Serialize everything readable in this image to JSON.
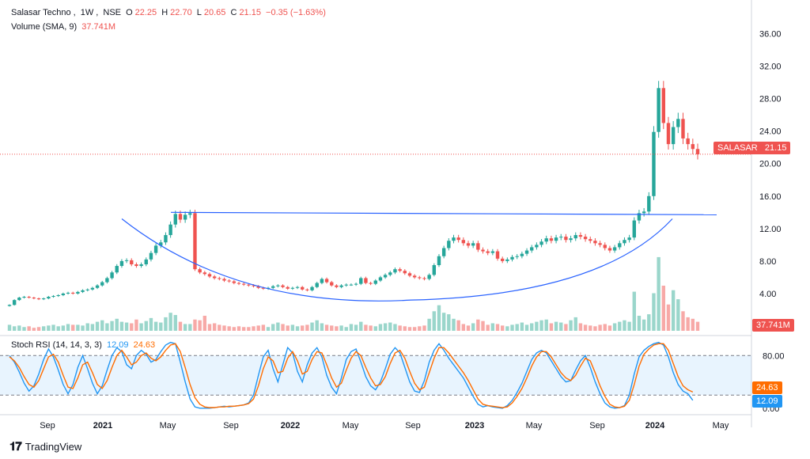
{
  "header": {
    "symbol": "Salasar Techno",
    "interval": "1W",
    "exchange": "NSE",
    "o_label": "O",
    "o": "22.25",
    "h_label": "H",
    "h": "22.70",
    "l_label": "L",
    "l": "20.65",
    "c_label": "C",
    "c": "21.15",
    "change": "−0.35 (−1.63%)",
    "volume_label": "Volume (SMA, 9)",
    "volume_value": "37.741M"
  },
  "price_tag": {
    "symbol": "SALASAR",
    "value": "21.15"
  },
  "volume_tag": "37.741M",
  "rsi": {
    "label": "Stoch RSI (14, 14, 3, 3)",
    "k": "12.09",
    "d": "24.63",
    "k_color": "#2196f3",
    "d_color": "#ff6d00"
  },
  "brand": "TradingView",
  "colors": {
    "up": "#26a69a",
    "down": "#ef5350",
    "line": "#2962ff",
    "vol_up": "#9ad6cb",
    "vol_down": "#f7a9a7"
  },
  "chart_data": [
    {
      "type": "candlestick",
      "title": "Salasar Techno, 1W, NSE",
      "y_ticks": [
        "4.00",
        "8.00",
        "12.00",
        "16.00",
        "20.00",
        "24.00",
        "28.00",
        "32.00",
        "36.00"
      ],
      "ylim": [
        0,
        38
      ],
      "x_ticks": [
        "Sep",
        "2021",
        "May",
        "Sep",
        "2022",
        "May",
        "Sep",
        "2023",
        "May",
        "Sep",
        "2024",
        "May"
      ],
      "last_price": 21.15,
      "series": [
        {
          "name": "price",
          "values": [
            2.6,
            3.2,
            3.5,
            3.6,
            3.5,
            3.4,
            3.3,
            3.4,
            3.6,
            3.7,
            3.8,
            4.0,
            4.1,
            4.0,
            4.2,
            4.4,
            4.5,
            4.7,
            5.0,
            5.4,
            5.9,
            6.6,
            7.4,
            8.0,
            8.1,
            7.6,
            7.4,
            7.6,
            8.2,
            9.0,
            9.9,
            10.3,
            11.2,
            12.5,
            13.8,
            13.1,
            13.7,
            13.9,
            7.0,
            6.6,
            6.4,
            6.1,
            5.9,
            5.8,
            5.6,
            5.5,
            5.3,
            5.2,
            5.1,
            5.0,
            4.9,
            4.7,
            4.6,
            4.7,
            4.9,
            5.0,
            4.8,
            4.6,
            4.7,
            4.8,
            4.5,
            4.4,
            4.8,
            5.3,
            5.8,
            5.4,
            5.0,
            4.8,
            5.0,
            5.1,
            5.1,
            5.2,
            5.9,
            5.3,
            5.2,
            5.6,
            6.0,
            6.3,
            6.6,
            7.0,
            6.8,
            6.5,
            6.2,
            6.0,
            5.9,
            5.8,
            6.3,
            7.5,
            8.6,
            9.6,
            10.5,
            10.9,
            10.6,
            10.2,
            9.9,
            10.2,
            9.4,
            9.2,
            9.0,
            9.2,
            8.3,
            8.0,
            8.2,
            8.5,
            8.6,
            8.9,
            9.3,
            9.7,
            10.0,
            10.4,
            10.8,
            10.5,
            10.9,
            11.0,
            10.6,
            10.8,
            11.2,
            11.0,
            10.7,
            10.5,
            10.2,
            10.0,
            9.6,
            9.3,
            9.7,
            10.2,
            10.6,
            10.9,
            13.0,
            13.9,
            14.1,
            16.0,
            23.9,
            29.3,
            25.0,
            22.4,
            24.5,
            25.5,
            23.1,
            22.4,
            21.8,
            21.15
          ]
        },
        {
          "name": "Volume (SMA, 9)",
          "values": [
            0.8,
            0.6,
            0.7,
            0.5,
            0.6,
            0.4,
            0.5,
            0.6,
            0.7,
            0.8,
            0.6,
            0.7,
            0.9,
            0.8,
            0.8,
            0.7,
            1.0,
            0.9,
            1.2,
            1.4,
            1.0,
            1.3,
            1.6,
            1.2,
            1.1,
            1.0,
            1.5,
            1.0,
            1.3,
            1.7,
            1.2,
            1.1,
            1.8,
            2.4,
            2.1,
            1.2,
            0.9,
            0.9,
            1.5,
            1.4,
            2.0,
            0.9,
            1.0,
            0.8,
            0.7,
            0.6,
            0.5,
            0.6,
            0.5,
            0.5,
            0.6,
            0.7,
            0.8,
            0.5,
            0.9,
            1.1,
            0.9,
            0.7,
            0.8,
            0.6,
            0.7,
            0.8,
            1.1,
            1.4,
            1.0,
            0.8,
            0.7,
            0.6,
            0.7,
            0.5,
            0.9,
            0.8,
            1.2,
            0.8,
            0.7,
            0.6,
            0.9,
            1.0,
            1.1,
            0.9,
            0.7,
            0.6,
            0.5,
            0.5,
            0.6,
            0.7,
            1.6,
            2.6,
            3.4,
            2.4,
            2.2,
            1.6,
            1.4,
            0.9,
            0.7,
            1.0,
            1.5,
            1.3,
            0.8,
            1.0,
            0.9,
            0.7,
            0.6,
            0.8,
            0.9,
            1.1,
            0.8,
            1.0,
            1.2,
            1.4,
            1.5,
            1.0,
            1.2,
            1.1,
            0.9,
            1.4,
            1.8,
            1.0,
            0.8,
            0.7,
            0.6,
            0.8,
            0.9,
            0.7,
            1.0,
            1.2,
            1.4,
            1.2,
            5.2,
            2.0,
            1.5,
            2.2,
            5.0,
            9.8,
            6.0,
            3.5,
            5.4,
            4.2,
            2.6,
            1.8,
            1.6,
            1.2
          ]
        }
      ],
      "annotations": [
        {
          "type": "horizontal_line",
          "y_start": 14.0,
          "y_end": 13.7
        },
        {
          "type": "rounding_bottom_curve",
          "y_left": 13.2,
          "y_bottom": 3.2,
          "y_right": 13.2
        }
      ]
    },
    {
      "type": "line",
      "title": "Stoch RSI (14, 14, 3, 3)",
      "y_ticks": [
        "0.00",
        "80.00"
      ],
      "ylim": [
        -5,
        102
      ],
      "bands": [
        20,
        80
      ],
      "series": [
        {
          "name": "12.09",
          "values": [
            80,
            70,
            55,
            38,
            26,
            34,
            52,
            74,
            90,
            78,
            58,
            36,
            22,
            36,
            62,
            80,
            60,
            38,
            22,
            34,
            58,
            80,
            92,
            86,
            66,
            60,
            80,
            88,
            82,
            70,
            74,
            86,
            96,
            100,
            98,
            70,
            40,
            14,
            2,
            0,
            0,
            0,
            1,
            2,
            3,
            2,
            3,
            4,
            5,
            8,
            20,
            50,
            78,
            88,
            60,
            40,
            66,
            92,
            84,
            56,
            40,
            66,
            84,
            92,
            78,
            50,
            32,
            22,
            46,
            74,
            86,
            90,
            70,
            48,
            34,
            28,
            40,
            60,
            82,
            92,
            84,
            62,
            40,
            26,
            24,
            42,
            70,
            88,
            98,
            88,
            76,
            66,
            56,
            46,
            32,
            18,
            6,
            2,
            4,
            2,
            1,
            0,
            4,
            12,
            24,
            38,
            56,
            74,
            84,
            88,
            84,
            72,
            60,
            48,
            40,
            42,
            58,
            72,
            80,
            62,
            40,
            22,
            8,
            2,
            0,
            1,
            4,
            20,
            52,
            78,
            88,
            94,
            98,
            100,
            96,
            78,
            54,
            36,
            26,
            22,
            12.09
          ]
        },
        {
          "name": "24.63",
          "values": [
            78,
            72,
            62,
            48,
            36,
            32,
            42,
            60,
            78,
            82,
            70,
            50,
            32,
            30,
            46,
            66,
            70,
            54,
            36,
            30,
            42,
            62,
            80,
            88,
            78,
            66,
            70,
            80,
            84,
            76,
            72,
            78,
            88,
            96,
            98,
            86,
            62,
            36,
            16,
            6,
            2,
            1,
            1,
            2,
            2,
            3,
            3,
            4,
            5,
            7,
            14,
            34,
            60,
            78,
            72,
            54,
            56,
            76,
            86,
            72,
            52,
            56,
            74,
            86,
            84,
            66,
            46,
            32,
            38,
            58,
            76,
            86,
            80,
            62,
            46,
            34,
            36,
            48,
            68,
            84,
            88,
            76,
            56,
            38,
            28,
            32,
            54,
            76,
            92,
            92,
            84,
            74,
            64,
            54,
            42,
            28,
            14,
            6,
            4,
            3,
            2,
            1,
            2,
            8,
            18,
            30,
            46,
            64,
            78,
            86,
            86,
            78,
            66,
            54,
            46,
            42,
            50,
            64,
            76,
            72,
            54,
            34,
            18,
            6,
            2,
            1,
            3,
            12,
            36,
            64,
            82,
            90,
            96,
            98,
            98,
            88,
            68,
            48,
            34,
            28,
            24.63
          ]
        }
      ]
    }
  ]
}
